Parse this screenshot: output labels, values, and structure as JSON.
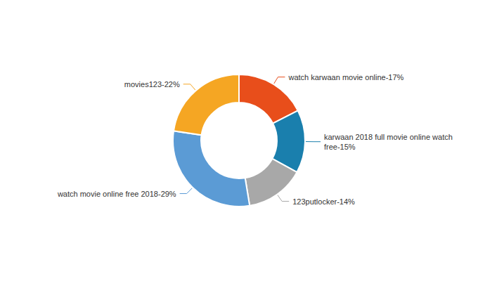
{
  "chart_data": {
    "type": "pie",
    "categories": [
      "watch karwaan movie online-17%",
      "karwaan 2018 full movie online watch free-15%",
      "123putlocker-14%",
      "watch movie online free 2018-29%",
      "movies123-22%"
    ],
    "values": [
      17,
      15,
      14,
      29,
      22
    ],
    "colors": [
      "#E84E1B",
      "#1A7FAD",
      "#A8A8A8",
      "#5B9BD5",
      "#F5A623"
    ]
  }
}
